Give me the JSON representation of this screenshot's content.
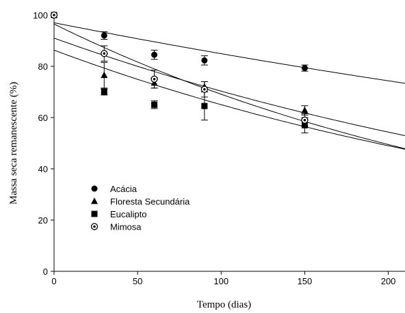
{
  "chart_data": {
    "type": "scatter",
    "title": "",
    "xlabel": "Tempo (dias)",
    "ylabel": "Massa seca remanescente (%)",
    "xlim": [
      0,
      210
    ],
    "ylim": [
      0,
      100
    ],
    "xticks": [
      0,
      50,
      100,
      150,
      200
    ],
    "yticks": [
      0,
      20,
      40,
      60,
      80,
      100
    ],
    "legend_position": "left-middle",
    "series": [
      {
        "name": "Acácia",
        "marker": "filled-circle",
        "points": [
          {
            "x": 0,
            "y": 100,
            "err": 0
          },
          {
            "x": 30,
            "y": 92,
            "err": 1.5
          },
          {
            "x": 60,
            "y": 84.5,
            "err": 1.8
          },
          {
            "x": 90,
            "y": 82.3,
            "err": 1.8
          },
          {
            "x": 150,
            "y": 79.3,
            "err": 1.2
          }
        ],
        "fit": {
          "a": 97,
          "k": 0.00133
        }
      },
      {
        "name": "Floresta Secundária",
        "marker": "filled-triangle",
        "points": [
          {
            "x": 0,
            "y": 100,
            "err": 0
          },
          {
            "x": 30,
            "y": 76.5,
            "err": 5
          },
          {
            "x": 60,
            "y": 73.5,
            "err": 2
          },
          {
            "x": 90,
            "y": 72,
            "err": 2
          },
          {
            "x": 150,
            "y": 62.8,
            "err": 1.8
          }
        ],
        "fit": {
          "a": 91,
          "k": 0.00258
        }
      },
      {
        "name": "Eucalipto",
        "marker": "filled-square",
        "points": [
          {
            "x": 0,
            "y": 100,
            "err": 0
          },
          {
            "x": 30,
            "y": 70,
            "err": 1.2
          },
          {
            "x": 60,
            "y": 65,
            "err": 1.5
          },
          {
            "x": 90,
            "y": 64.5,
            "err": 5.5
          },
          {
            "x": 150,
            "y": 57,
            "err": 3
          }
        ],
        "fit": {
          "a": 86.3,
          "k": 0.00283
        }
      },
      {
        "name": "Mimosa",
        "marker": "dotted-circle",
        "points": [
          {
            "x": 0,
            "y": 100,
            "err": 0
          },
          {
            "x": 30,
            "y": 85,
            "err": 3
          },
          {
            "x": 60,
            "y": 75,
            "err": 3.5
          },
          {
            "x": 90,
            "y": 71,
            "err": 3
          },
          {
            "x": 150,
            "y": 59,
            "err": 2.5
          }
        ],
        "fit": {
          "a": 96.5,
          "k": 0.00334
        }
      }
    ]
  }
}
